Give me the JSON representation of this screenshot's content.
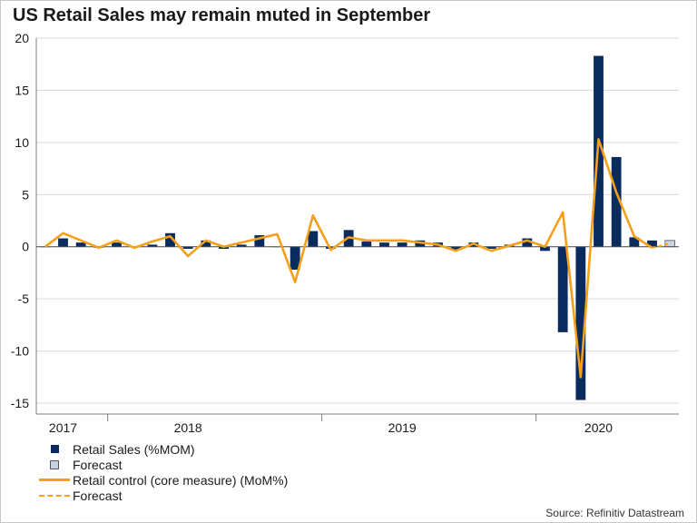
{
  "title": "US Retail Sales may remain muted in September",
  "source": "Source: Refinitiv Datastream",
  "colors": {
    "bar": "#0A2B5E",
    "forecast_bar": "#C9D3E3",
    "line": "#F5A01A",
    "grid": "#d9d9d9",
    "axis": "#7f7f7f"
  },
  "legend": [
    {
      "label": "Retail Sales (%MOM)",
      "kind": "bar"
    },
    {
      "label": "Forecast",
      "kind": "forecast-bar"
    },
    {
      "label": "Retail control (core measure) (MoM%)",
      "kind": "line"
    },
    {
      "label": "Forecast",
      "kind": "dashed-line"
    }
  ],
  "chart_data": {
    "type": "bar",
    "title": "US Retail Sales may remain muted in September",
    "ylim": [
      -15,
      20
    ],
    "yticks": [
      20,
      15,
      10,
      5,
      0,
      -5,
      -10,
      -15
    ],
    "year_labels": [
      {
        "label": "2017",
        "index": 1
      },
      {
        "label": "2018",
        "index": 8
      },
      {
        "label": "2019",
        "index": 20
      },
      {
        "label": "2020",
        "index": 31
      }
    ],
    "year_boundaries": [
      4,
      16,
      28
    ],
    "series": [
      {
        "name": "Retail Sales (%MOM)",
        "values": [
          0.0,
          0.8,
          0.4,
          -0.1,
          0.4,
          0.0,
          0.2,
          1.3,
          -0.2,
          0.6,
          -0.2,
          0.2,
          1.1,
          0.0,
          -2.2,
          1.5,
          -0.2,
          1.6,
          0.5,
          0.4,
          0.4,
          0.6,
          0.4,
          -0.3,
          0.4,
          -0.2,
          0.2,
          0.8,
          -0.4,
          -8.2,
          -14.7,
          18.3,
          8.6,
          0.9,
          0.6,
          null
        ]
      },
      {
        "name": "Forecast",
        "values": [
          null,
          null,
          null,
          null,
          null,
          null,
          null,
          null,
          null,
          null,
          null,
          null,
          null,
          null,
          null,
          null,
          null,
          null,
          null,
          null,
          null,
          null,
          null,
          null,
          null,
          null,
          null,
          null,
          null,
          null,
          null,
          null,
          null,
          null,
          null,
          0.6
        ]
      },
      {
        "name": "Retail control (core measure) (MoM%)",
        "values": [
          0.0,
          1.3,
          0.6,
          -0.1,
          0.6,
          -0.1,
          0.5,
          1.0,
          -0.9,
          0.6,
          0.0,
          0.4,
          0.8,
          1.2,
          -3.4,
          3.0,
          -0.3,
          0.9,
          0.6,
          0.6,
          0.6,
          0.4,
          0.2,
          -0.4,
          0.3,
          -0.4,
          0.1,
          0.6,
          0.0,
          3.3,
          -12.5,
          10.3,
          5.2,
          1.0,
          -0.1,
          null
        ]
      },
      {
        "name": "Forecast",
        "values": [
          null,
          null,
          null,
          null,
          null,
          null,
          null,
          null,
          null,
          null,
          null,
          null,
          null,
          null,
          null,
          null,
          null,
          null,
          null,
          null,
          null,
          null,
          null,
          null,
          null,
          null,
          null,
          null,
          null,
          null,
          null,
          null,
          null,
          null,
          -0.1,
          0.3
        ]
      }
    ]
  }
}
